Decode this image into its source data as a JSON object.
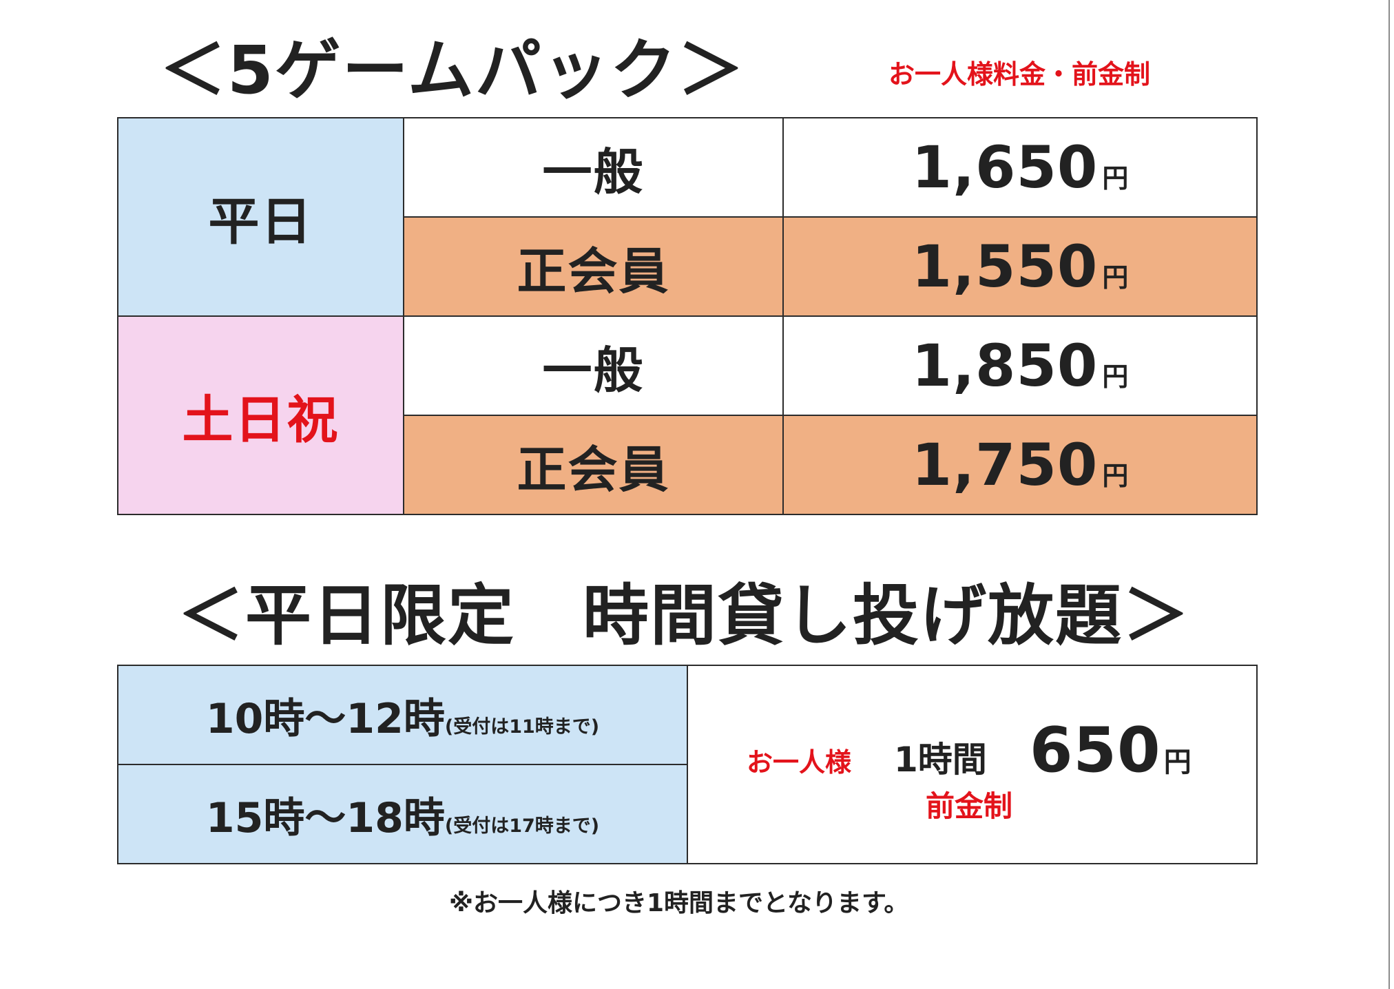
{
  "pack": {
    "title": "＜5ゲームパック＞",
    "note": "お一人様料金・前金制",
    "groups": [
      {
        "day": "平日",
        "rows": [
          {
            "type": "一般",
            "price": "1,650",
            "unit": "円"
          },
          {
            "type": "正会員",
            "price": "1,550",
            "unit": "円"
          }
        ]
      },
      {
        "day": "土日祝",
        "rows": [
          {
            "type": "一般",
            "price": "1,850",
            "unit": "円"
          },
          {
            "type": "正会員",
            "price": "1,750",
            "unit": "円"
          }
        ]
      }
    ]
  },
  "timepack": {
    "title": "＜平日限定　時間貸し投げ放題＞",
    "slots": [
      {
        "time": "10時～12時",
        "note": "(受付は11時まで)"
      },
      {
        "time": "15時～18時",
        "note": "(受付は17時まで)"
      }
    ],
    "per_person": "お一人様",
    "duration": "1時間",
    "price": "650",
    "unit": "円",
    "prepaid": "前金制"
  },
  "footer": "※お一人様につき1時間までとなります。",
  "colors": {
    "text": "#222222",
    "accent_red": "#e3131b",
    "weekday_bg": "#cde4f6",
    "weekend_bg": "#f6d4ee",
    "member_bg": "#f0b084",
    "general_bg": "#ffffff",
    "border": "#2b2b2b"
  }
}
